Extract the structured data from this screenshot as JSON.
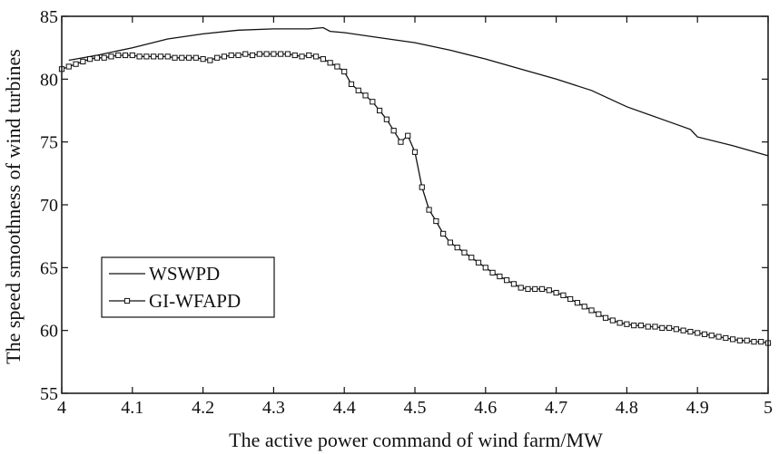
{
  "chart_data": {
    "type": "line",
    "title": "",
    "xlabel": "The active power command of wind farm/MW",
    "ylabel": "The speed smoothness of wind turbines",
    "xlim": [
      4,
      5
    ],
    "ylim": [
      55,
      85
    ],
    "xticks": [
      4,
      4.1,
      4.2,
      4.3,
      4.4,
      4.5,
      4.6,
      4.7,
      4.8,
      4.9,
      5
    ],
    "xtick_labels": [
      "4",
      "4.1",
      "4.2",
      "4.3",
      "4.4",
      "4.5",
      "4.6",
      "4.7",
      "4.8",
      "4.9",
      "5"
    ],
    "yticks": [
      55,
      60,
      65,
      70,
      75,
      80,
      85
    ],
    "ytick_labels": [
      "55",
      "60",
      "65",
      "70",
      "75",
      "80",
      "85"
    ],
    "grid": false,
    "legend_position": "middle-left",
    "series": [
      {
        "name": "WSWPD",
        "marker": "none",
        "x": [
          4.01,
          4.05,
          4.1,
          4.15,
          4.2,
          4.25,
          4.3,
          4.35,
          4.37,
          4.38,
          4.4,
          4.45,
          4.5,
          4.55,
          4.6,
          4.65,
          4.7,
          4.75,
          4.8,
          4.85,
          4.89,
          4.9,
          4.95,
          5.0
        ],
        "values": [
          81.5,
          81.9,
          82.5,
          83.2,
          83.6,
          83.9,
          84.0,
          84.0,
          84.1,
          83.8,
          83.7,
          83.3,
          82.9,
          82.3,
          81.6,
          80.8,
          80.0,
          79.1,
          77.8,
          76.8,
          76.0,
          75.4,
          74.7,
          73.9
        ]
      },
      {
        "name": "GI-WFAPD",
        "marker": "square",
        "x": [
          4.0,
          4.01,
          4.02,
          4.03,
          4.04,
          4.05,
          4.06,
          4.07,
          4.08,
          4.09,
          4.1,
          4.11,
          4.12,
          4.13,
          4.14,
          4.15,
          4.16,
          4.17,
          4.18,
          4.19,
          4.2,
          4.21,
          4.22,
          4.23,
          4.24,
          4.25,
          4.26,
          4.27,
          4.28,
          4.29,
          4.3,
          4.31,
          4.32,
          4.33,
          4.34,
          4.35,
          4.36,
          4.37,
          4.38,
          4.39,
          4.4,
          4.41,
          4.42,
          4.43,
          4.44,
          4.45,
          4.46,
          4.47,
          4.48,
          4.49,
          4.5,
          4.51,
          4.52,
          4.53,
          4.54,
          4.55,
          4.56,
          4.57,
          4.58,
          4.59,
          4.6,
          4.61,
          4.62,
          4.63,
          4.64,
          4.65,
          4.66,
          4.67,
          4.68,
          4.69,
          4.7,
          4.71,
          4.72,
          4.73,
          4.74,
          4.75,
          4.76,
          4.77,
          4.78,
          4.79,
          4.8,
          4.81,
          4.82,
          4.83,
          4.84,
          4.85,
          4.86,
          4.87,
          4.88,
          4.89,
          4.9,
          4.91,
          4.92,
          4.93,
          4.94,
          4.95,
          4.96,
          4.97,
          4.98,
          4.99,
          5.0
        ],
        "values": [
          80.8,
          81.0,
          81.2,
          81.4,
          81.6,
          81.7,
          81.7,
          81.8,
          81.9,
          81.9,
          81.9,
          81.8,
          81.8,
          81.8,
          81.8,
          81.8,
          81.7,
          81.7,
          81.7,
          81.7,
          81.6,
          81.5,
          81.7,
          81.8,
          81.9,
          81.9,
          82.0,
          81.9,
          82.0,
          82.0,
          82.0,
          82.0,
          82.0,
          81.9,
          81.8,
          81.9,
          81.8,
          81.6,
          81.3,
          81.0,
          80.6,
          79.6,
          79.1,
          78.7,
          78.2,
          77.5,
          76.8,
          75.9,
          75.0,
          75.5,
          74.2,
          71.4,
          69.6,
          68.7,
          67.7,
          67.0,
          66.6,
          66.2,
          65.8,
          65.4,
          65.0,
          64.6,
          64.3,
          64.0,
          63.7,
          63.4,
          63.3,
          63.3,
          63.3,
          63.2,
          63.0,
          62.8,
          62.5,
          62.2,
          61.9,
          61.6,
          61.3,
          61.0,
          60.8,
          60.6,
          60.5,
          60.4,
          60.4,
          60.3,
          60.3,
          60.2,
          60.2,
          60.1,
          60.0,
          59.9,
          59.8,
          59.7,
          59.6,
          59.5,
          59.4,
          59.3,
          59.2,
          59.2,
          59.1,
          59.1,
          59.0
        ]
      }
    ]
  }
}
